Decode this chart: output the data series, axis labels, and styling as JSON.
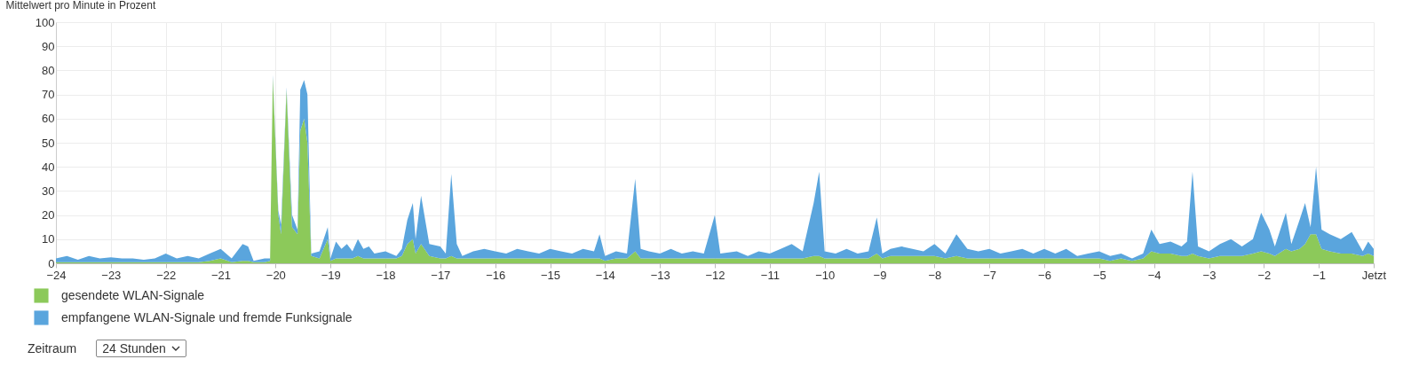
{
  "chart_data": {
    "type": "area",
    "stacked": true,
    "ylabel": "Mittelwert pro Minute in Prozent",
    "x": [
      -24,
      -23.8,
      -23.6,
      -23.4,
      -23.2,
      -23,
      -22.8,
      -22.6,
      -22.4,
      -22.2,
      -22,
      -21.8,
      -21.6,
      -21.4,
      -21.2,
      -21,
      -20.8,
      -20.6,
      -20.5,
      -20.4,
      -20.2,
      -20.1,
      -20.05,
      -19.95,
      -19.9,
      -19.8,
      -19.7,
      -19.6,
      -19.55,
      -19.48,
      -19.42,
      -19.35,
      -19.2,
      -19.05,
      -19,
      -18.9,
      -18.8,
      -18.7,
      -18.6,
      -18.5,
      -18.4,
      -18.3,
      -18.2,
      -18,
      -17.8,
      -17.7,
      -17.6,
      -17.5,
      -17.45,
      -17.35,
      -17.2,
      -17,
      -16.9,
      -16.8,
      -16.7,
      -16.6,
      -16.4,
      -16.2,
      -16,
      -15.8,
      -15.6,
      -15.4,
      -15.2,
      -15,
      -14.8,
      -14.6,
      -14.4,
      -14.2,
      -14.1,
      -14,
      -13.8,
      -13.6,
      -13.45,
      -13.35,
      -13.2,
      -13,
      -12.8,
      -12.6,
      -12.4,
      -12.2,
      -12,
      -11.9,
      -11.6,
      -11.4,
      -11.2,
      -11,
      -10.8,
      -10.6,
      -10.4,
      -10.2,
      -10.1,
      -10,
      -9.8,
      -9.6,
      -9.4,
      -9.2,
      -9.05,
      -8.95,
      -8.8,
      -8.6,
      -8.4,
      -8.2,
      -8,
      -7.8,
      -7.6,
      -7.4,
      -7.2,
      -7,
      -6.8,
      -6.6,
      -6.4,
      -6.2,
      -6,
      -5.8,
      -5.6,
      -5.4,
      -5.2,
      -5,
      -4.8,
      -4.6,
      -4.4,
      -4.2,
      -4.05,
      -3.9,
      -3.7,
      -3.5,
      -3.4,
      -3.3,
      -3.2,
      -3,
      -2.8,
      -2.6,
      -2.4,
      -2.2,
      -2.05,
      -1.9,
      -1.8,
      -1.6,
      -1.5,
      -1.35,
      -1.25,
      -1.15,
      -1.05,
      -0.95,
      -0.8,
      -0.6,
      -0.4,
      -0.2,
      -0.1,
      0
    ],
    "series": [
      {
        "name": "gesendete WLAN-Signale",
        "color": "#8cc95a",
        "values": [
          0.5,
          0.5,
          0.5,
          0.5,
          0.5,
          0.5,
          0.5,
          0.5,
          0.5,
          0.5,
          0.5,
          0.5,
          0.5,
          0.5,
          1,
          2,
          0.5,
          1,
          1,
          0.5,
          0.5,
          1,
          77,
          20,
          12,
          72,
          15,
          12,
          55,
          60,
          50,
          3,
          2,
          10,
          1,
          2,
          2,
          2,
          2,
          3,
          2,
          2,
          2,
          2,
          2,
          3,
          8,
          10,
          4,
          8,
          3,
          2,
          2,
          3,
          2,
          2,
          2,
          2,
          2,
          2,
          2,
          2,
          2,
          2,
          2,
          2,
          2,
          2,
          2,
          1,
          2,
          2,
          5,
          2,
          2,
          2,
          2,
          2,
          2,
          2,
          2,
          2,
          2,
          2,
          2,
          2,
          2,
          2,
          2,
          3,
          3,
          2,
          2,
          2,
          2,
          2,
          4,
          2,
          3,
          3,
          3,
          3,
          3,
          2,
          3,
          2,
          2,
          2,
          2,
          2,
          2,
          2,
          2,
          2,
          2,
          2,
          2,
          2,
          1,
          2,
          1,
          2,
          5,
          4,
          4,
          3,
          3,
          4,
          3,
          2,
          3,
          3,
          3,
          4,
          5,
          4,
          3,
          6,
          5,
          6,
          8,
          12,
          12,
          6,
          5,
          4,
          4,
          3,
          4,
          3
        ]
      },
      {
        "name": "empfangene WLAN-Signale und fremde Funksignale",
        "color": "#5aa5dd",
        "values": [
          1.5,
          2.5,
          1,
          2.5,
          1.5,
          2,
          1.5,
          1.5,
          1,
          1.5,
          3.5,
          1.5,
          2.5,
          1.5,
          3,
          4,
          1.5,
          7,
          6,
          0.5,
          1.5,
          1,
          1,
          2,
          4,
          1,
          5,
          2,
          17,
          16,
          20,
          1,
          3,
          5,
          1,
          7,
          4,
          6,
          3,
          7,
          4,
          5,
          2,
          3,
          1,
          3,
          10,
          15,
          6,
          20,
          5,
          5,
          2,
          34,
          6,
          1,
          3,
          4,
          3,
          2,
          4,
          3,
          2,
          4,
          3,
          2,
          4,
          3,
          10,
          2,
          3,
          2,
          30,
          4,
          3,
          2,
          4,
          2,
          3,
          2,
          18,
          2,
          3,
          1,
          3,
          2,
          4,
          6,
          3,
          22,
          35,
          3,
          2,
          4,
          2,
          3,
          15,
          2,
          3,
          4,
          3,
          2,
          5,
          2,
          9,
          4,
          3,
          4,
          2,
          3,
          4,
          2,
          4,
          2,
          4,
          1,
          2,
          3,
          2,
          2,
          1,
          2,
          9,
          4,
          5,
          4,
          6,
          34,
          4,
          3,
          5,
          7,
          4,
          6,
          16,
          10,
          4,
          15,
          3,
          12,
          17,
          3,
          28,
          8,
          7,
          6,
          9,
          2,
          5,
          3
        ]
      }
    ],
    "xlim": [
      -24,
      0
    ],
    "xticks": [
      -24,
      -23,
      -22,
      -21,
      -20,
      -19,
      -18,
      -17,
      -16,
      -15,
      -14,
      -13,
      -12,
      -11,
      -10,
      -9,
      -8,
      -7,
      -6,
      -5,
      -4,
      -3,
      -2,
      -1,
      {
        "value": 0,
        "label": "Jetzt"
      }
    ],
    "ylim": [
      0,
      100
    ],
    "yticks": [
      0,
      10,
      20,
      30,
      40,
      50,
      60,
      70,
      80,
      90,
      100
    ],
    "grid": true,
    "legend": "bottom",
    "annotations": [
      "Zeitraum",
      "24 Stunden"
    ]
  }
}
